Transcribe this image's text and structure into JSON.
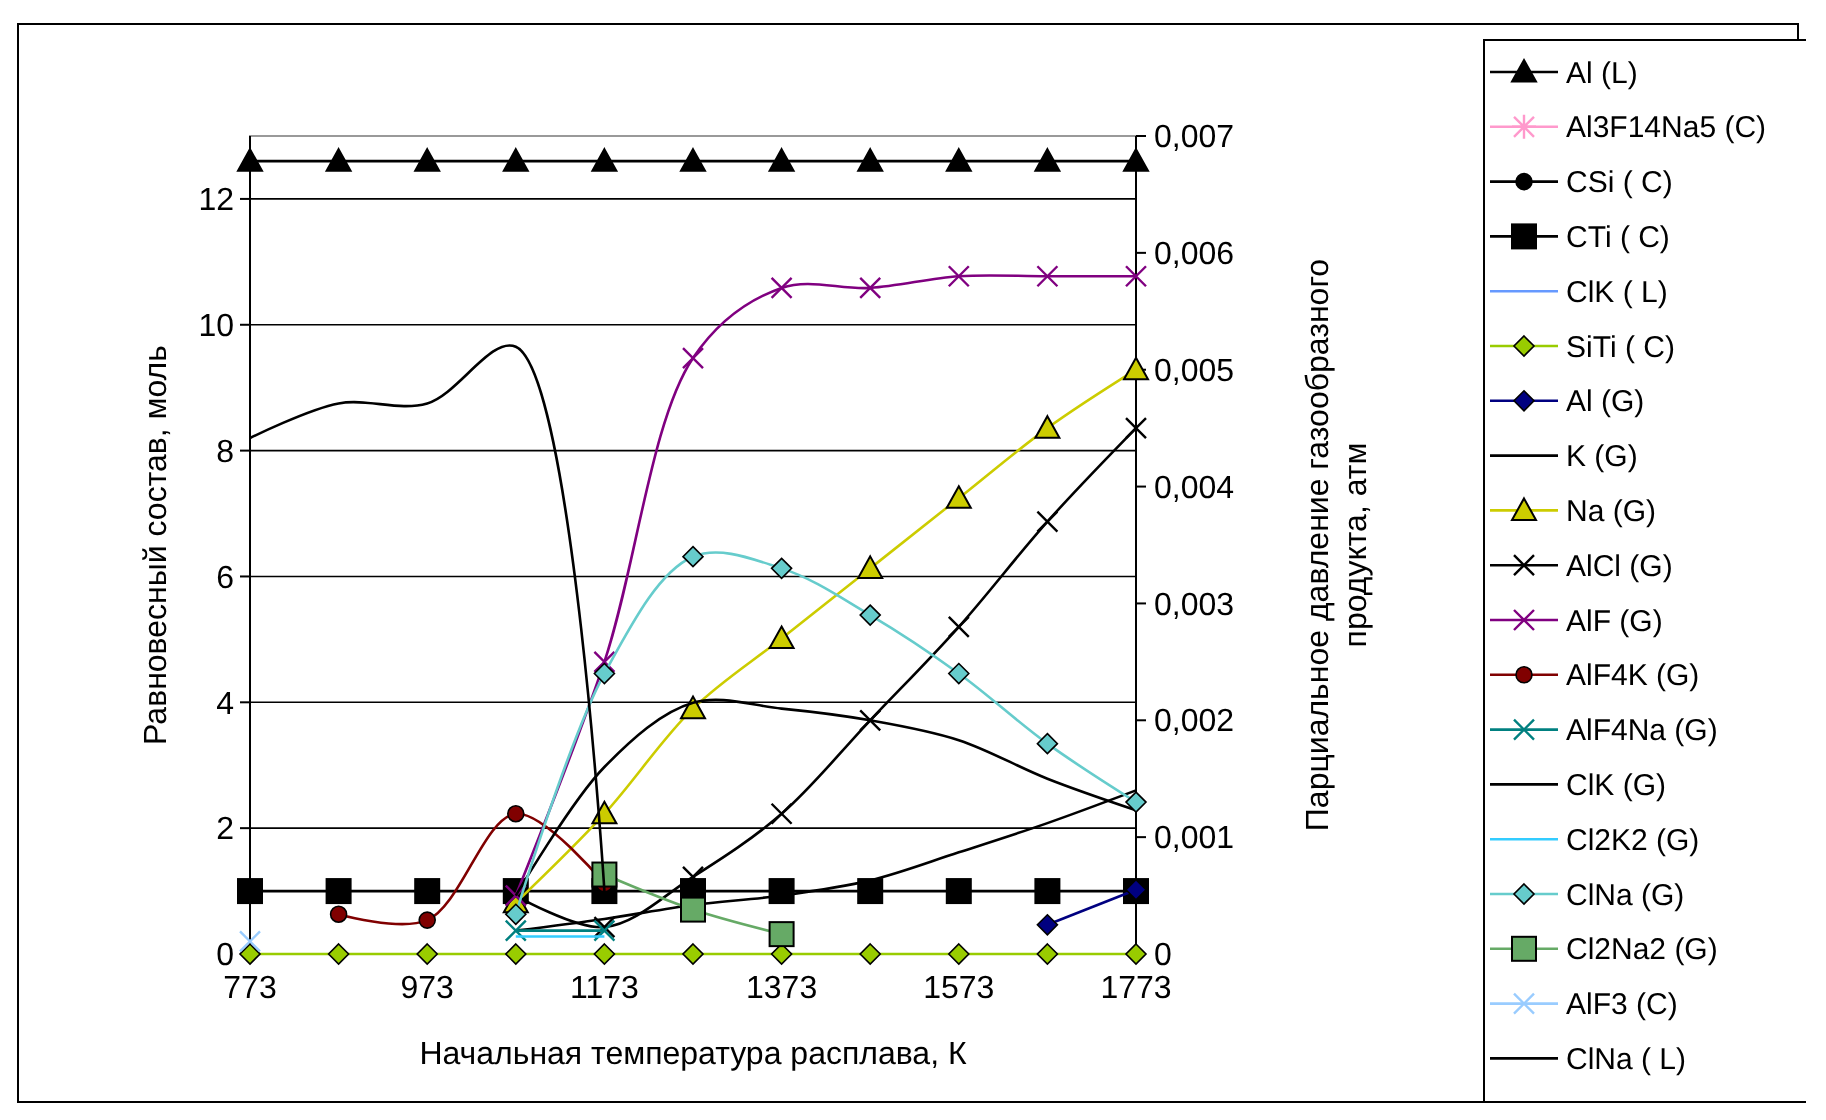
{
  "chart_data": {
    "type": "line",
    "xlabel": "Начальная температура расплава, К",
    "ylabel": "Равновесный состав, моль",
    "y2label": "Парциальное давление газообразного продукта, атм",
    "x": [
      773,
      873,
      973,
      1073,
      1173,
      1273,
      1373,
      1473,
      1573,
      1673,
      1773
    ],
    "xlim": [
      773,
      1773
    ],
    "xticks": [
      773,
      973,
      1173,
      1373,
      1573,
      1773
    ],
    "ylim": [
      0,
      13
    ],
    "yticks": [
      0,
      2,
      4,
      6,
      8,
      10,
      12
    ],
    "y2lim": [
      0,
      0.007
    ],
    "y2ticks": [
      0,
      {
        "value": 0.001,
        "label": "0,001"
      },
      {
        "value": 0.002,
        "label": "0,002"
      },
      {
        "value": 0.003,
        "label": "0,003"
      },
      {
        "value": 0.004,
        "label": "0,004"
      },
      {
        "value": 0.005,
        "label": "0,005"
      },
      {
        "value": 0.006,
        "label": "0,006"
      },
      {
        "value": 0.007,
        "label": "0,007"
      }
    ],
    "grid": "y",
    "legend": "right",
    "series": [
      {
        "name": "Al (L)",
        "color": "#000000",
        "marker": "triangle",
        "values": [
          12.6,
          12.6,
          12.6,
          12.6,
          12.6,
          12.6,
          12.6,
          12.6,
          12.6,
          12.6,
          12.6
        ]
      },
      {
        "name": "Al3F14Na5 (C)",
        "color": "#ff99cc",
        "marker": "star",
        "values": [
          null,
          null,
          null,
          null,
          null,
          null,
          null,
          null,
          null,
          null,
          null
        ]
      },
      {
        "name": "CSi ( C)",
        "color": "#000000",
        "marker": "circle",
        "values": [
          null,
          null,
          null,
          null,
          null,
          null,
          null,
          null,
          null,
          null,
          null
        ]
      },
      {
        "name": "CTi ( C)",
        "color": "#000000",
        "marker": "square",
        "values": [
          1,
          1,
          1,
          1,
          1,
          1,
          1,
          1,
          1,
          1,
          1
        ]
      },
      {
        "name": "ClK ( L)",
        "color": "#6699ff",
        "marker": "none",
        "values": [
          null,
          null,
          null,
          null,
          null,
          null,
          null,
          null,
          null,
          null,
          null
        ]
      },
      {
        "name": "SiTi ( C)",
        "color": "#99cc00",
        "marker": "diamond",
        "values": [
          0,
          0,
          0,
          0,
          0,
          0,
          0,
          0,
          0,
          0,
          0
        ]
      },
      {
        "name": "Al (G)",
        "color": "#000080",
        "marker": "diamond",
        "axis": "y2",
        "values": [
          null,
          null,
          null,
          null,
          null,
          null,
          null,
          null,
          null,
          0.00025,
          0.00055
        ]
      },
      {
        "name": "K (G)",
        "color": "#000000",
        "marker": "none",
        "axis": "y2",
        "values": [
          null,
          null,
          null,
          0.0002,
          0.0003,
          0.00042,
          0.0005,
          0.00063,
          0.00087,
          0.00112,
          0.0014
        ]
      },
      {
        "name": "Na (G)",
        "color": "#cccc00",
        "marker": "triangle",
        "axis": "y2",
        "values": [
          null,
          null,
          null,
          0.00044,
          0.0012,
          0.0021,
          0.0027,
          0.0033,
          0.0039,
          0.0045,
          0.005
        ]
      },
      {
        "name": "AlCl (G)",
        "color": "#000000",
        "marker": "cross",
        "axis": "y2",
        "values": [
          null,
          null,
          null,
          0.0005,
          0.00023,
          0.00066,
          0.0012,
          0.002,
          0.0028,
          0.0037,
          0.0045
        ]
      },
      {
        "name": "AlF (G)",
        "color": "#800080",
        "marker": "cross",
        "axis": "y2",
        "values": [
          null,
          null,
          null,
          0.0005,
          0.0025,
          0.0051,
          0.0057,
          0.0057,
          0.0058,
          0.0058,
          0.0058
        ]
      },
      {
        "name": "AlF4K (G)",
        "color": "#800000",
        "marker": "circle",
        "axis": "y2",
        "values": [
          null,
          0.00034,
          0.00029,
          0.0012,
          0.0006,
          null,
          null,
          null,
          null,
          null,
          null
        ]
      },
      {
        "name": "AlF4Na (G)",
        "color": "#008080",
        "marker": "cross",
        "axis": "y2",
        "values": [
          null,
          null,
          null,
          0.0002,
          0.0002,
          null,
          null,
          null,
          null,
          null,
          null
        ]
      },
      {
        "name": "ClK (G)",
        "color": "#000000",
        "marker": "none",
        "axis": "y2",
        "values": [
          null,
          null,
          null,
          0.0005,
          0.0016,
          0.00215,
          0.0021,
          0.002,
          0.00183,
          0.0015,
          0.00123
        ]
      },
      {
        "name": "Cl2K2 (G)",
        "color": "#33ccff",
        "marker": "none",
        "axis": "y2",
        "values": [
          null,
          null,
          null,
          0.00015,
          0.00015,
          null,
          null,
          null,
          null,
          null,
          null
        ]
      },
      {
        "name": "ClNa (G)",
        "color": "#66cccc",
        "marker": "diamond",
        "axis": "y2",
        "values": [
          null,
          null,
          null,
          0.00034,
          0.0024,
          0.0034,
          0.0033,
          0.0029,
          0.0024,
          0.0018,
          0.0013
        ]
      },
      {
        "name": "Cl2Na2 (G)",
        "color": "#66aa66",
        "marker": "square",
        "axis": "y2",
        "values": [
          null,
          null,
          null,
          null,
          0.00068,
          0.00038,
          0.00017,
          null,
          null,
          null,
          null
        ]
      },
      {
        "name": "AlF3 (C)",
        "color": "#99ccff",
        "marker": "cross",
        "values": [
          0.2,
          null,
          null,
          null,
          null,
          null,
          null,
          null,
          null,
          null,
          null
        ]
      },
      {
        "name": "ClNa ( L)",
        "color": "#000000",
        "marker": "none",
        "values": [
          8.2,
          8.75,
          8.75,
          9.65,
          1,
          null,
          null,
          null,
          null,
          null,
          null
        ]
      }
    ]
  }
}
